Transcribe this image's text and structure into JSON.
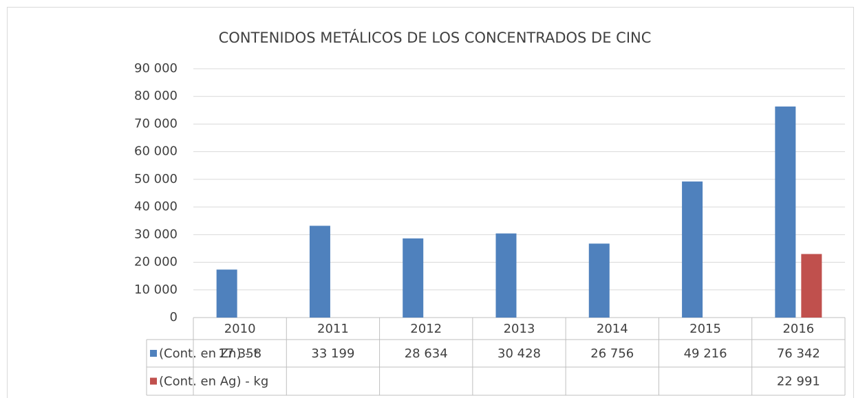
{
  "chart_data": {
    "type": "bar",
    "title": "CONTENIDOS METÁLICOS DE LOS CONCENTRADOS DE CINC",
    "categories": [
      "2010",
      "2011",
      "2012",
      "2013",
      "2014",
      "2015",
      "2016"
    ],
    "series": [
      {
        "name": "(Cont. en Zn) - t",
        "color": "#4f81bd",
        "values": [
          17358,
          33199,
          28634,
          30428,
          26756,
          49216,
          76342
        ],
        "value_labels": [
          "17 358",
          "33 199",
          "28 634",
          "30 428",
          "26 756",
          "49 216",
          "76 342"
        ]
      },
      {
        "name": "(Cont. en Ag) - kg",
        "color": "#c0504d",
        "values": [
          null,
          null,
          null,
          null,
          null,
          null,
          22991
        ],
        "value_labels": [
          null,
          null,
          null,
          null,
          null,
          null,
          "22 991"
        ]
      }
    ],
    "ylim": [
      0,
      90000
    ],
    "yticks": [
      0,
      {
        "value": 10000,
        "label": "10 000"
      },
      {
        "value": 20000,
        "label": "20 000"
      },
      {
        "value": 30000,
        "label": "30 000"
      },
      {
        "value": 40000,
        "label": "40 000"
      },
      {
        "value": 50000,
        "label": "50 000"
      },
      {
        "value": 60000,
        "label": "60 000"
      },
      {
        "value": 70000,
        "label": "70 000"
      },
      {
        "value": 80000,
        "label": "80 000"
      },
      {
        "value": 90000,
        "label": "90 000"
      }
    ],
    "grid": true
  }
}
